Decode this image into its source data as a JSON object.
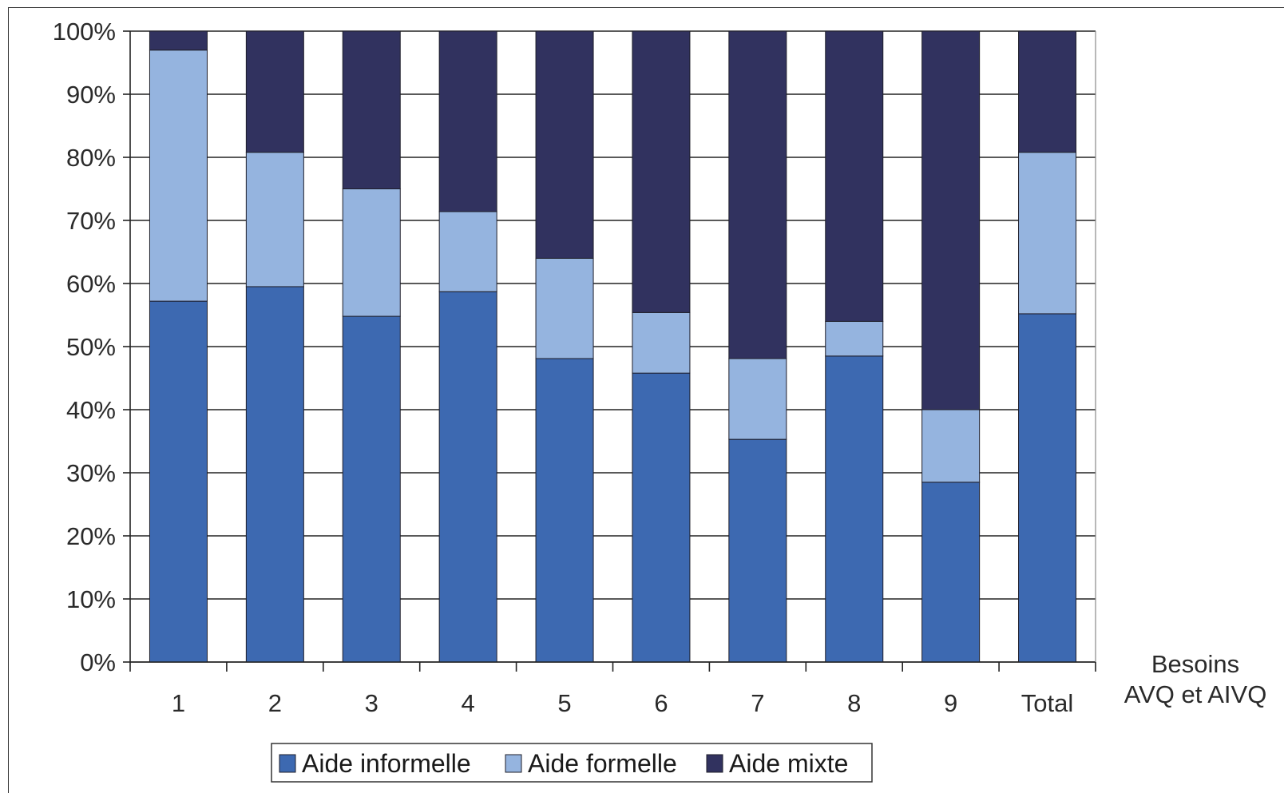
{
  "chart_data": {
    "type": "bar",
    "stacked": true,
    "categories": [
      "1",
      "2",
      "3",
      "4",
      "5",
      "6",
      "7",
      "8",
      "9",
      "Total"
    ],
    "series": [
      {
        "name": "Aide informelle",
        "color": "#3d69b1",
        "values": [
          57.2,
          59.5,
          54.8,
          58.7,
          48.1,
          45.8,
          35.3,
          48.5,
          28.5,
          55.2
        ]
      },
      {
        "name": "Aide formelle",
        "color": "#95b4df",
        "values": [
          39.8,
          21.3,
          20.2,
          12.7,
          15.9,
          9.6,
          12.8,
          5.5,
          11.5,
          25.6
        ]
      },
      {
        "name": "Aide mixte",
        "color": "#31325f",
        "values": [
          3.0,
          19.2,
          25.0,
          28.6,
          36.0,
          44.6,
          51.9,
          46.0,
          60.0,
          19.2
        ]
      }
    ],
    "xlabel": "Besoins AVQ et AIVQ",
    "xlabel_lines": [
      "Besoins",
      "AVQ et AIVQ"
    ],
    "ylabel": "",
    "ylim": [
      0,
      100
    ],
    "y_ticks": [
      "0%",
      "10%",
      "20%",
      "30%",
      "40%",
      "50%",
      "60%",
      "70%",
      "80%",
      "90%",
      "100%"
    ],
    "grid": true,
    "legend_position": "bottom-center"
  }
}
